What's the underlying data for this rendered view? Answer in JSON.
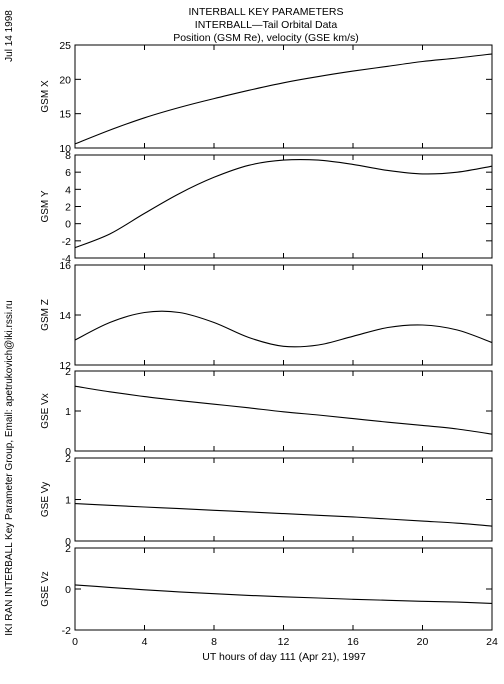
{
  "header": {
    "date": "Jul 14 1998",
    "side_note": "IKI RAN INTERBALL Key Parameter Group, Email: apetrukovich@iki.rssi.ru",
    "title_lines": [
      "INTERBALL KEY PARAMETERS",
      "INTERBALL—Tail Orbital Data",
      "Position (GSM Re), velocity (GSE km/s)"
    ]
  },
  "chart_data": {
    "type": "line",
    "title": "INTERBALL KEY PARAMETERS / INTERBALL—Tail Orbital Data / Position (GSM Re), velocity (GSE km/s)",
    "xlabel": "UT hours of day 111 (Apr 21), 1997",
    "xlim": [
      0,
      24
    ],
    "xticks": [
      0,
      4,
      8,
      12,
      16,
      20,
      24
    ],
    "grid": false,
    "panels": [
      {
        "name": "GSM X",
        "ylabel": "GSM X",
        "ylim": [
          10,
          25
        ],
        "yticks": [
          10,
          15,
          20,
          25
        ],
        "x": [
          0,
          2,
          4,
          6,
          8,
          10,
          12,
          14,
          16,
          18,
          20,
          22,
          24
        ],
        "y": [
          10.6,
          12.6,
          14.4,
          15.9,
          17.2,
          18.4,
          19.5,
          20.4,
          21.2,
          21.9,
          22.6,
          23.1,
          23.7
        ]
      },
      {
        "name": "GSM Y",
        "ylabel": "GSM Y",
        "ylim": [
          -4,
          8
        ],
        "yticks": [
          -4,
          -2,
          0,
          2,
          4,
          6,
          8
        ],
        "x": [
          0,
          2,
          4,
          6,
          8,
          10,
          12,
          14,
          16,
          18,
          20,
          22,
          24
        ],
        "y": [
          -2.8,
          -1.2,
          1.2,
          3.5,
          5.4,
          6.8,
          7.4,
          7.4,
          6.9,
          6.2,
          5.8,
          6.0,
          6.7
        ]
      },
      {
        "name": "GSM Z",
        "ylabel": "GSM Z",
        "ylim": [
          12,
          16
        ],
        "yticks": [
          12,
          14,
          16
        ],
        "x": [
          0,
          2,
          4,
          6,
          8,
          10,
          12,
          14,
          16,
          18,
          20,
          22,
          24
        ],
        "y": [
          13.0,
          13.7,
          14.1,
          14.1,
          13.7,
          13.1,
          12.75,
          12.8,
          13.15,
          13.5,
          13.6,
          13.4,
          12.9
        ]
      },
      {
        "name": "GSE Vx",
        "ylabel": "GSE Vx",
        "ylim": [
          0,
          2
        ],
        "yticks": [
          0,
          1,
          2
        ],
        "x": [
          0,
          2,
          4,
          6,
          8,
          10,
          12,
          14,
          16,
          18,
          20,
          22,
          24
        ],
        "y": [
          1.62,
          1.48,
          1.36,
          1.26,
          1.17,
          1.08,
          0.98,
          0.9,
          0.81,
          0.72,
          0.64,
          0.55,
          0.42
        ]
      },
      {
        "name": "GSE Vy",
        "ylabel": "GSE Vy",
        "ylim": [
          0,
          2
        ],
        "yticks": [
          0,
          1,
          2
        ],
        "x": [
          0,
          2,
          4,
          6,
          8,
          10,
          12,
          14,
          16,
          18,
          20,
          22,
          24
        ],
        "y": [
          0.9,
          0.86,
          0.82,
          0.78,
          0.74,
          0.7,
          0.66,
          0.62,
          0.58,
          0.53,
          0.48,
          0.43,
          0.36
        ]
      },
      {
        "name": "GSE Vz",
        "ylabel": "GSE Vz",
        "ylim": [
          -2,
          2
        ],
        "yticks": [
          -2,
          0,
          2
        ],
        "x": [
          0,
          2,
          4,
          6,
          8,
          10,
          12,
          14,
          16,
          18,
          20,
          22,
          24
        ],
        "y": [
          0.2,
          0.08,
          -0.04,
          -0.14,
          -0.23,
          -0.31,
          -0.38,
          -0.44,
          -0.5,
          -0.55,
          -0.6,
          -0.64,
          -0.7
        ]
      }
    ]
  }
}
